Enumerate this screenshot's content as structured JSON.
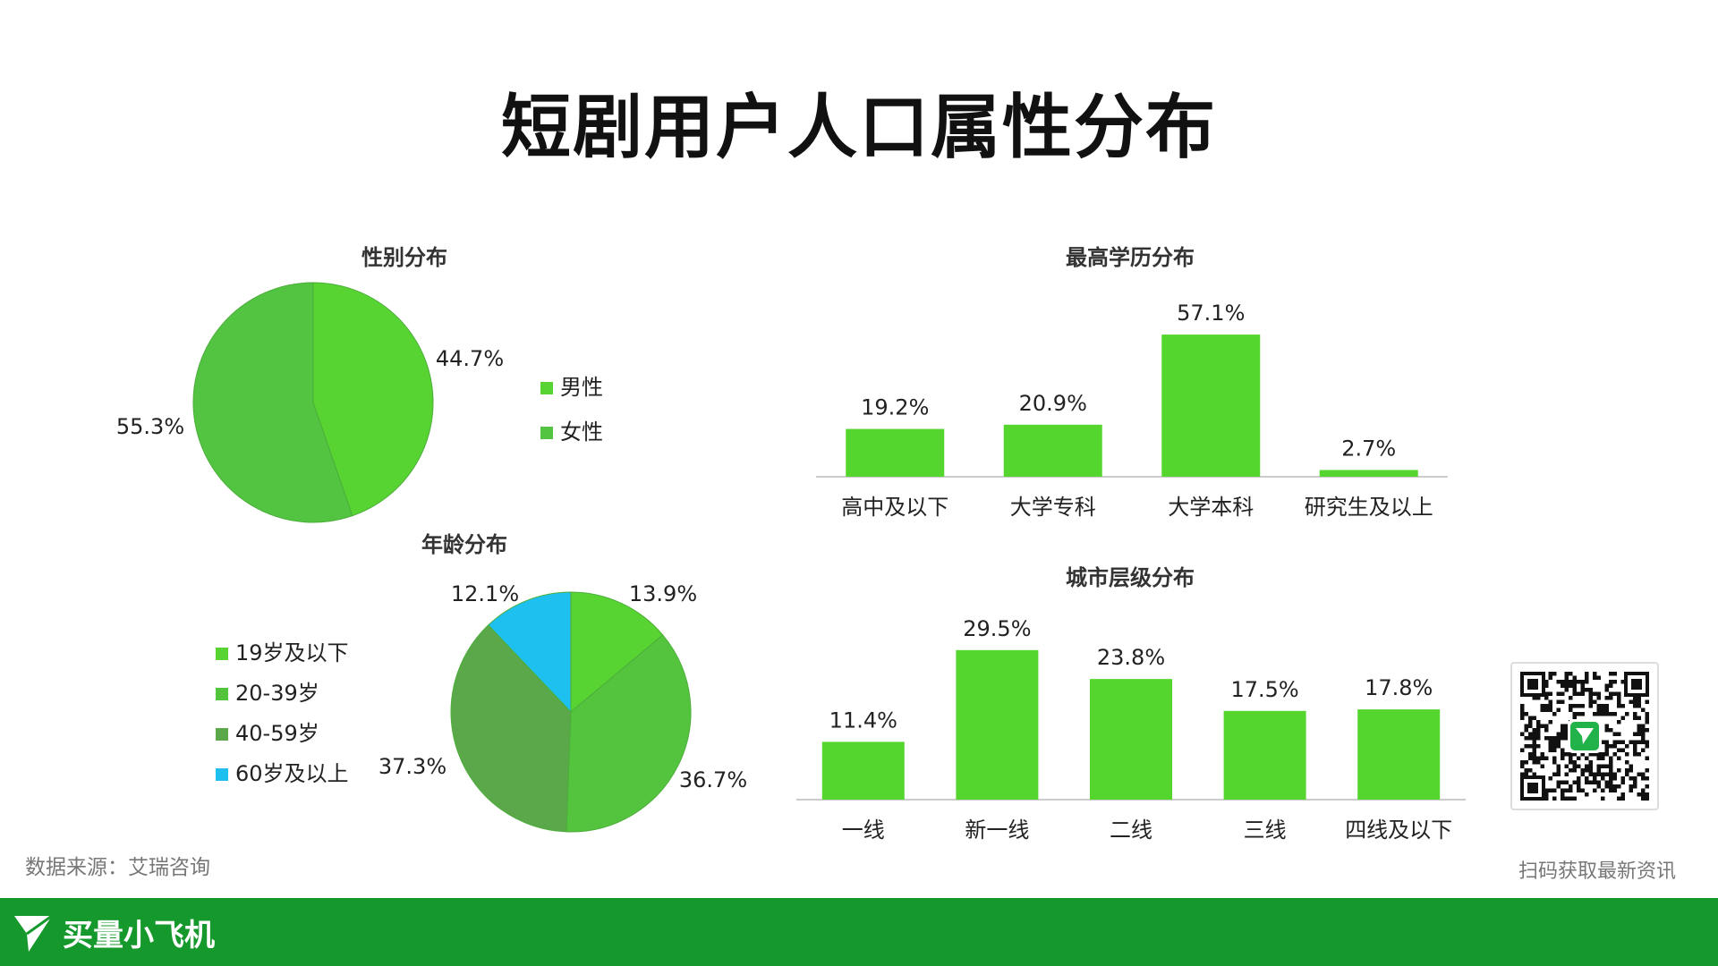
{
  "title": "短剧用户人口属性分布",
  "source": "数据来源：艾瑞咨询",
  "qr_caption": "扫码获取最新资讯",
  "brand": {
    "name": "买量小飞机",
    "icon": "paper-plane-icon"
  },
  "colors": {
    "green_light": "#55d62f",
    "green_mid": "#50c43d",
    "green_dark": "#5aa84a",
    "cyan": "#1ec0ef",
    "footer": "#15992c"
  },
  "chart_data": [
    {
      "id": "gender",
      "type": "pie",
      "title": "性别分布",
      "series": [
        {
          "name": "男性",
          "value": 44.7,
          "label": "44.7%",
          "color": "#57d432"
        },
        {
          "name": "女性",
          "value": 55.3,
          "label": "55.3%",
          "color": "#52c441"
        }
      ],
      "legend": [
        "男性",
        "女性"
      ],
      "legend_position": "right"
    },
    {
      "id": "age",
      "type": "pie",
      "title": "年龄分布",
      "series": [
        {
          "name": "19岁及以下",
          "value": 13.9,
          "label": "13.9%",
          "color": "#57d432"
        },
        {
          "name": "20-39岁",
          "value": 36.7,
          "label": "36.7%",
          "color": "#54c43f"
        },
        {
          "name": "40-59岁",
          "value": 37.3,
          "label": "37.3%",
          "color": "#5aa84a"
        },
        {
          "name": "60岁及以上",
          "value": 12.1,
          "label": "12.1%",
          "color": "#1ec0ef"
        }
      ],
      "legend": [
        "19岁及以下",
        "20-39岁",
        "40-59岁",
        "60岁及以上"
      ],
      "legend_position": "left"
    },
    {
      "id": "education",
      "type": "bar",
      "title": "最高学历分布",
      "categories": [
        "高中及以下",
        "大学专科",
        "大学本科",
        "研究生及以上"
      ],
      "values": [
        19.2,
        20.9,
        57.1,
        2.7
      ],
      "labels": [
        "19.2%",
        "20.9%",
        "57.1%",
        "2.7%"
      ],
      "ylim": [
        0,
        60
      ]
    },
    {
      "id": "city",
      "type": "bar",
      "title": "城市层级分布",
      "categories": [
        "一线",
        "新一线",
        "二线",
        "三线",
        "四线及以下"
      ],
      "values": [
        11.4,
        29.5,
        23.8,
        17.5,
        17.8
      ],
      "labels": [
        "11.4%",
        "29.5%",
        "23.8%",
        "17.5%",
        "17.8%"
      ],
      "ylim": [
        0,
        30
      ]
    }
  ]
}
